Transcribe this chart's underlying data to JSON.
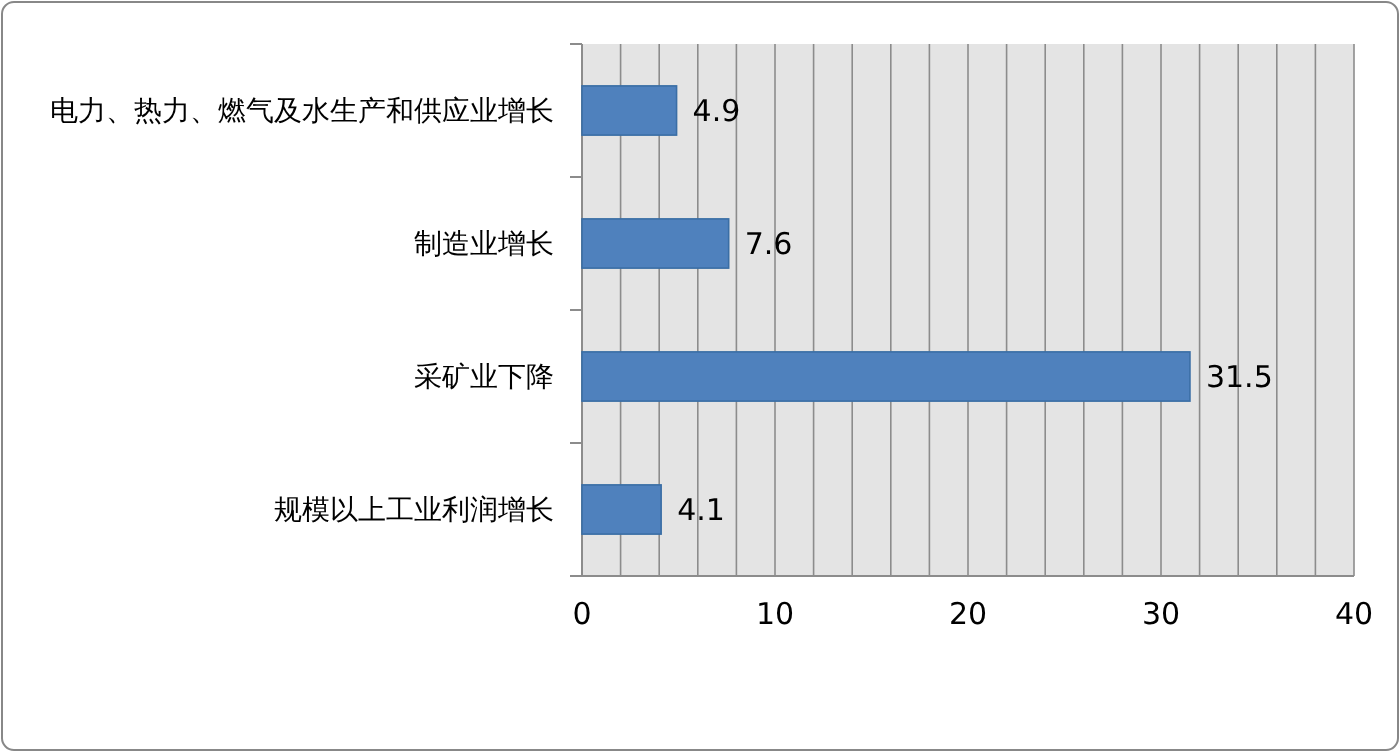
{
  "chart_data": {
    "type": "bar",
    "orientation": "horizontal",
    "categories": [
      "电力、热力、燃气及水生产和供应业增长",
      "制造业增长",
      "采矿业下降",
      "规模以上工业利润增长"
    ],
    "values": [
      4.9,
      7.6,
      31.5,
      4.1
    ],
    "color": "#4f81bd",
    "data_labels": true,
    "grid": "x",
    "xlim": [
      0,
      40
    ],
    "xticks": [
      0,
      {
        "value": 2,
        "label": null
      },
      {
        "value": 4,
        "label": null
      },
      {
        "value": 6,
        "label": null
      },
      {
        "value": 8,
        "label": null
      },
      10,
      {
        "value": 12,
        "label": null
      },
      {
        "value": 14,
        "label": null
      },
      {
        "value": 16,
        "label": null
      },
      {
        "value": 18,
        "label": null
      },
      20,
      {
        "value": 22,
        "label": null
      },
      {
        "value": 24,
        "label": null
      },
      {
        "value": 26,
        "label": null
      },
      {
        "value": 28,
        "label": null
      },
      30,
      {
        "value": 32,
        "label": null
      },
      {
        "value": 34,
        "label": null
      },
      {
        "value": 36,
        "label": null
      },
      {
        "value": 38,
        "label": null
      },
      40
    ]
  }
}
